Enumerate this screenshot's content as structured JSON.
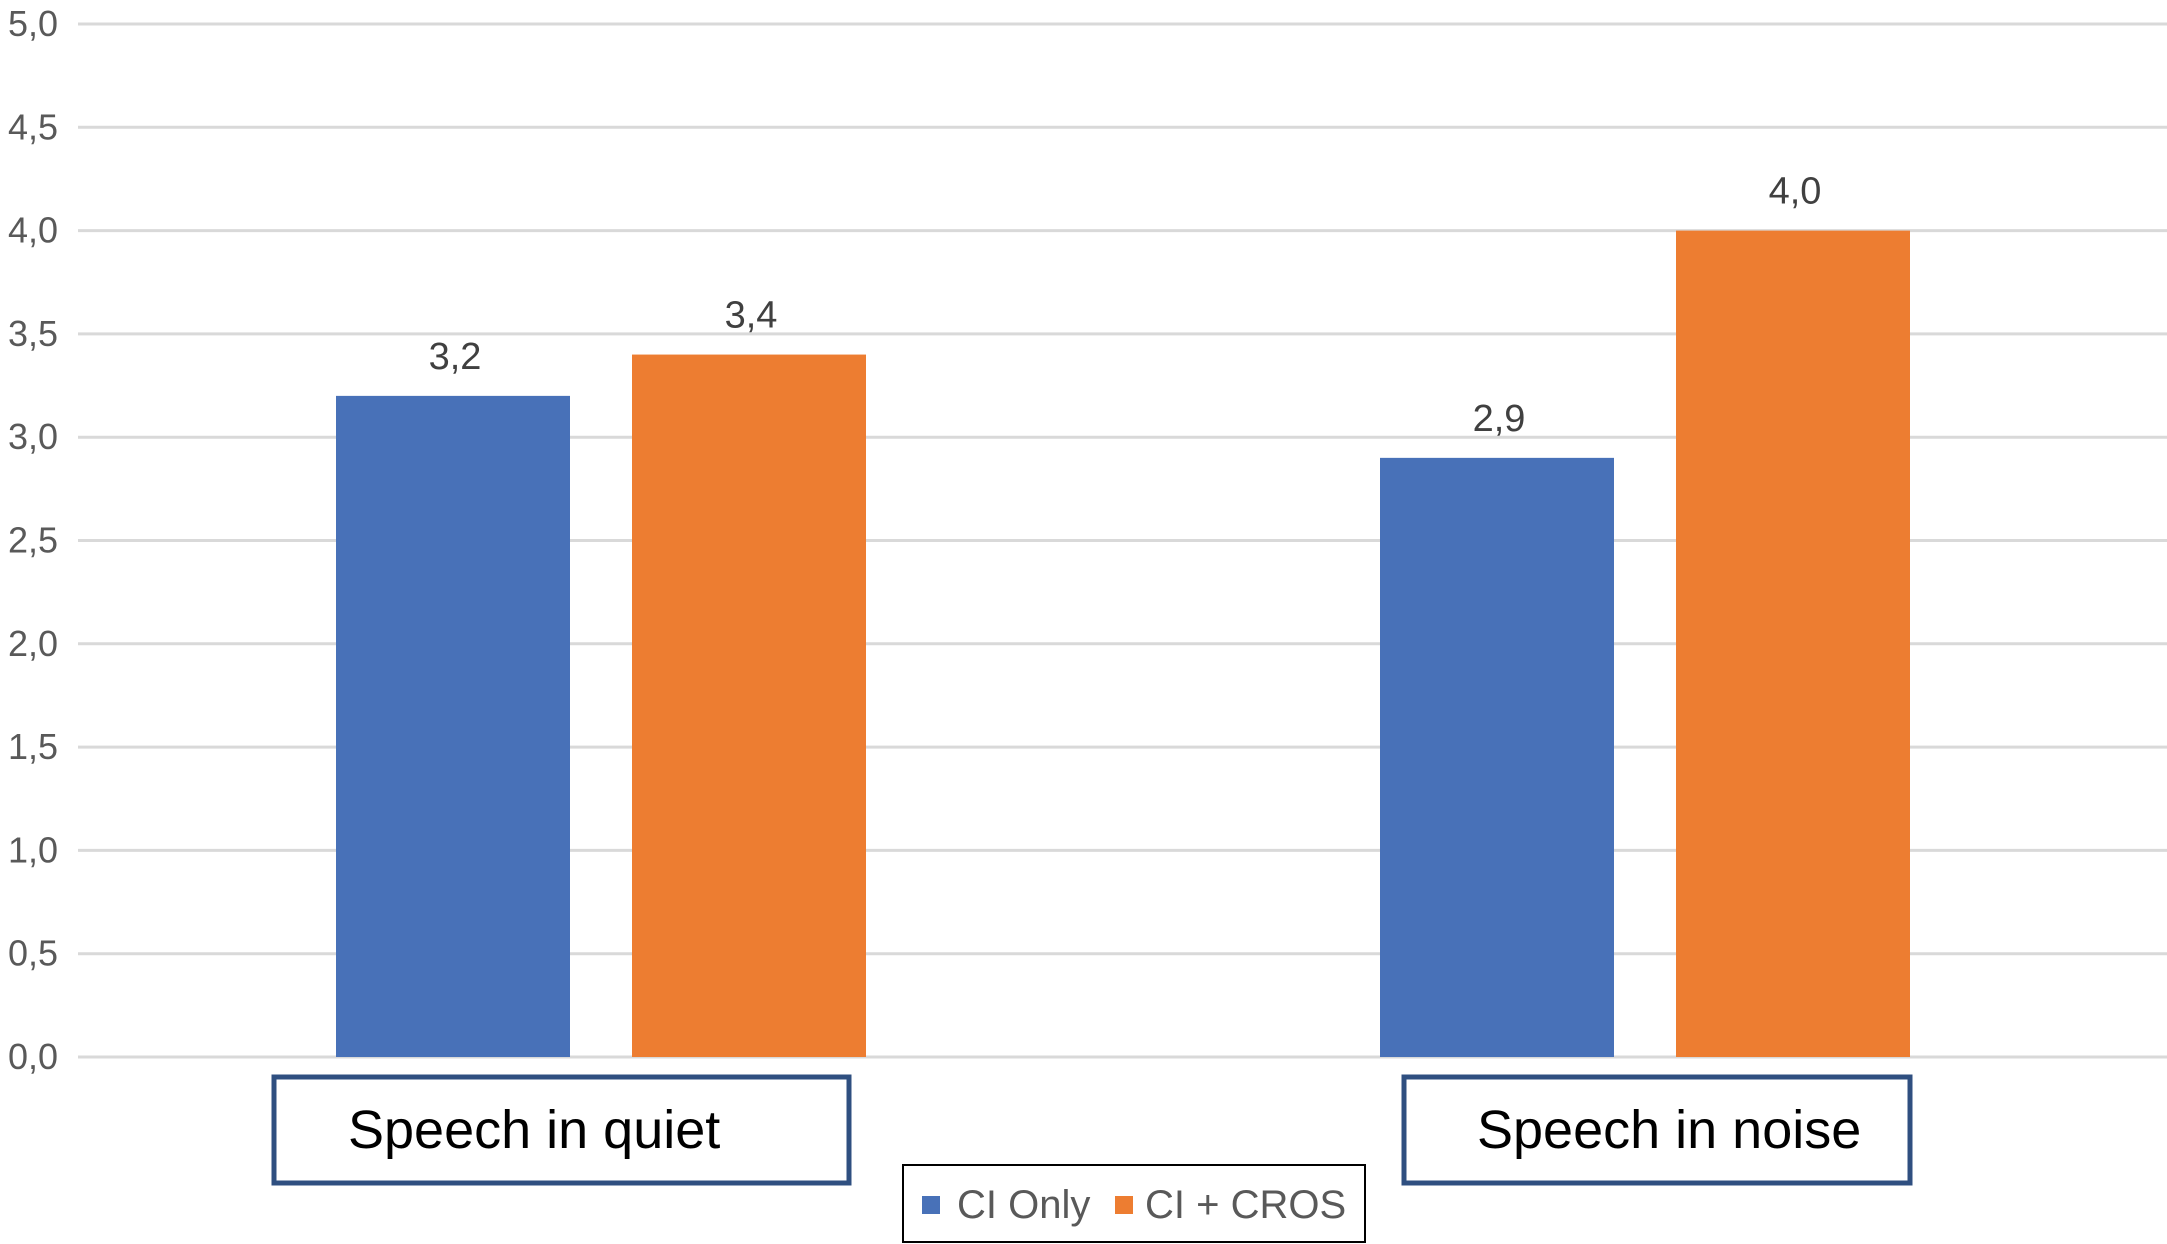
{
  "chart_data": {
    "type": "bar",
    "categories": [
      "Speech in quiet",
      "Speech in noise"
    ],
    "series": [
      {
        "name": "CI Only",
        "values": [
          3.2,
          2.9
        ],
        "labels": [
          "3,2",
          "2,9"
        ],
        "color": "#4871B8"
      },
      {
        "name": "CI + CROS",
        "values": [
          3.4,
          4.0
        ],
        "labels": [
          "3,4",
          "4,0"
        ],
        "color": "#ED7D31"
      }
    ],
    "ylim": [
      0,
      5
    ],
    "yticks": [
      "0,0",
      "0,5",
      "1,0",
      "1,5",
      "2,0",
      "2,5",
      "3,0",
      "3,5",
      "4,0",
      "4,5",
      "5,0"
    ],
    "title": "",
    "xlabel": "",
    "ylabel": "",
    "grid": true,
    "legend_position": "bottom",
    "category_box_color": "#2F4F80"
  }
}
